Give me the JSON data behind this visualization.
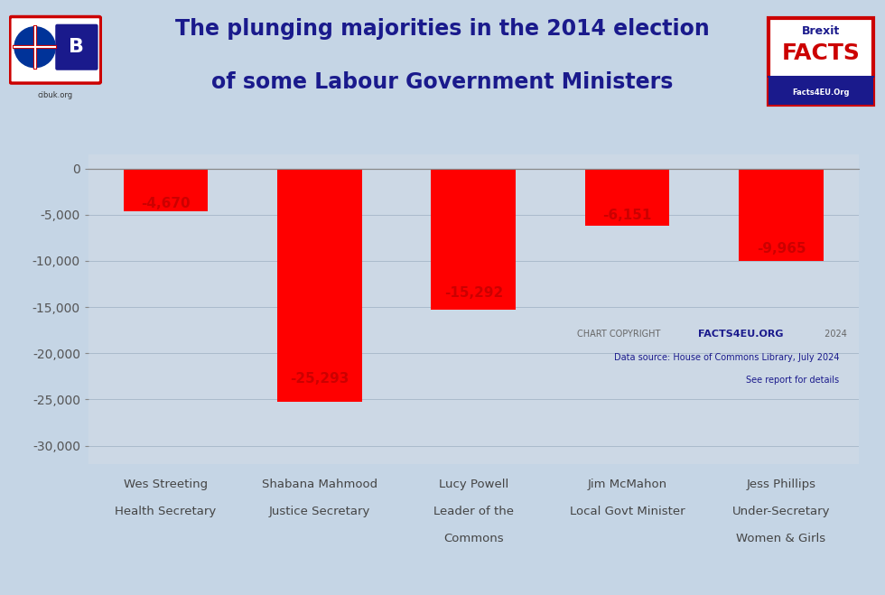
{
  "title_line1": "The plunging majorities in the 2014 election",
  "title_line2": "of some Labour Government Ministers",
  "categories": [
    "Wes Streeting\nHealth Secretary",
    "Shabana Mahmood\nJustice Secretary",
    "Lucy Powell\nLeader of the\nCommons",
    "Jim McMahon\nLocal Govt Minister",
    "Jess Phillips\nUnder-Secretary\nWomen & Girls"
  ],
  "values": [
    -4670,
    -25293,
    -15292,
    -6151,
    -9965
  ],
  "bar_color": "#FF0000",
  "value_labels": [
    "-4,670",
    "-25,293",
    "-15,292",
    "-6,151",
    "-9,965"
  ],
  "ylim": [
    -32000,
    1500
  ],
  "yticks": [
    0,
    -5000,
    -10000,
    -15000,
    -20000,
    -25000,
    -30000
  ],
  "ytick_labels": [
    "0",
    "-5,000",
    "-10,000",
    "-15,000",
    "-20,000",
    "-25,000",
    "-30,000"
  ],
  "background_color": "#c5d5e5",
  "plot_bg_color": "#ccd8e5",
  "title_color": "#1a1a8c",
  "bar_label_color": "#cc0000",
  "axis_color": "#555555",
  "value_label_offsets": [
    0.82,
    0.9,
    0.88,
    0.82,
    0.87
  ],
  "copyright_color": "#666666",
  "copyright_bold_color": "#1a1a8c",
  "datasource_color": "#1a1a8c"
}
